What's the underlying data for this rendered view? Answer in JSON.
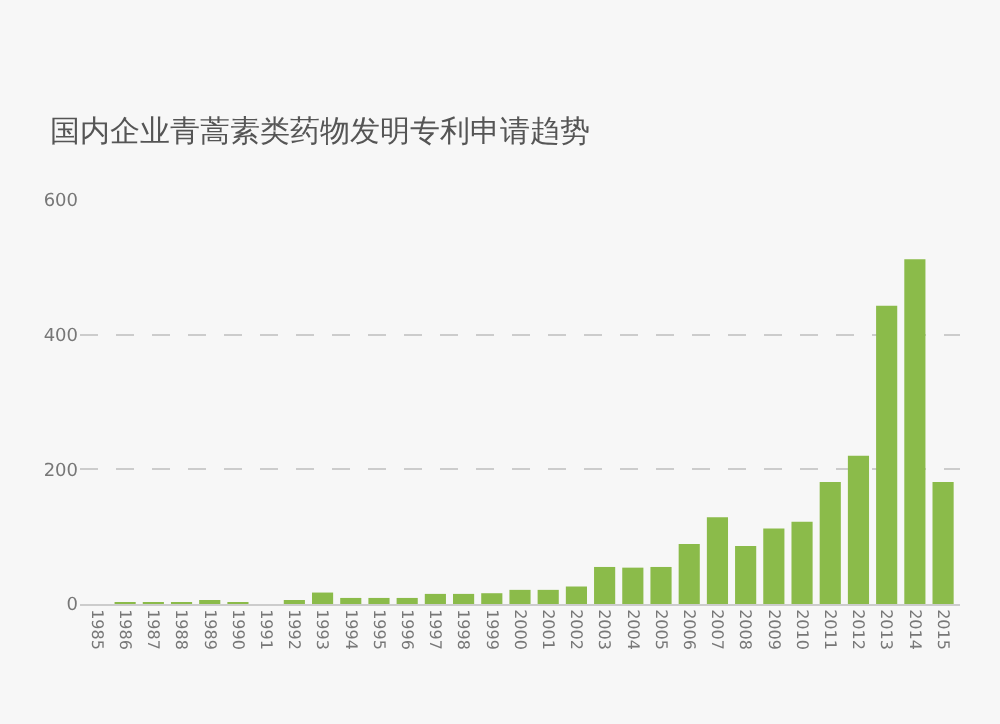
{
  "chart_data": {
    "type": "bar",
    "title": "国内企业青蒿素类药物发明专利申请趋势",
    "categories": [
      "1985",
      "1986",
      "1987",
      "1988",
      "1989",
      "1990",
      "1991",
      "1992",
      "1993",
      "1994",
      "1995",
      "1996",
      "1997",
      "1998",
      "1999",
      "2000",
      "2001",
      "2002",
      "2003",
      "2004",
      "2005",
      "2006",
      "2007",
      "2008",
      "2009",
      "2010",
      "2011",
      "2012",
      "2013",
      "2014",
      "2015"
    ],
    "values": [
      0,
      1,
      1,
      1,
      3,
      2,
      0,
      3,
      17,
      9,
      9,
      9,
      15,
      15,
      16,
      21,
      21,
      26,
      55,
      54,
      55,
      89,
      129,
      86,
      112,
      122,
      181,
      220,
      443,
      512,
      181
    ],
    "color": "#8bbb4a",
    "ylim": [
      0,
      600
    ],
    "yticks": [
      0,
      200,
      400,
      600
    ],
    "grid": "y"
  }
}
